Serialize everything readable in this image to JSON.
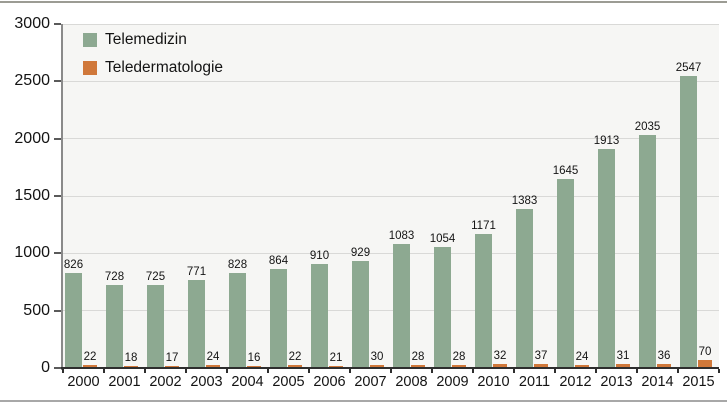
{
  "chart_data": {
    "type": "bar",
    "title": "",
    "xlabel": "",
    "ylabel": "",
    "categories": [
      "2000",
      "2001",
      "2002",
      "2003",
      "2004",
      "2005",
      "2006",
      "2007",
      "2008",
      "2009",
      "2010",
      "2011",
      "2012",
      "2013",
      "2014",
      "2015"
    ],
    "series": [
      {
        "name": "Telemedizin",
        "color": "#8da991",
        "values": [
          826,
          728,
          725,
          771,
          828,
          864,
          910,
          929,
          1083,
          1054,
          1171,
          1383,
          1645,
          1913,
          2035,
          2547
        ]
      },
      {
        "name": "Teledermatologie",
        "color": "#d0783a",
        "values": [
          22,
          18,
          17,
          24,
          16,
          22,
          21,
          30,
          28,
          28,
          32,
          37,
          24,
          31,
          36,
          70
        ]
      }
    ],
    "ylim": [
      0,
      3000
    ],
    "yticks": [
      0,
      500,
      1000,
      1500,
      2000,
      2500,
      3000
    ],
    "grid": true,
    "legend_position": "top-left",
    "data_labels": true,
    "plot_bg": "#f6f6f4",
    "gridline_color": "#d9d9d7",
    "axis_color": "#2e2e2e",
    "text_color": "#141414"
  }
}
